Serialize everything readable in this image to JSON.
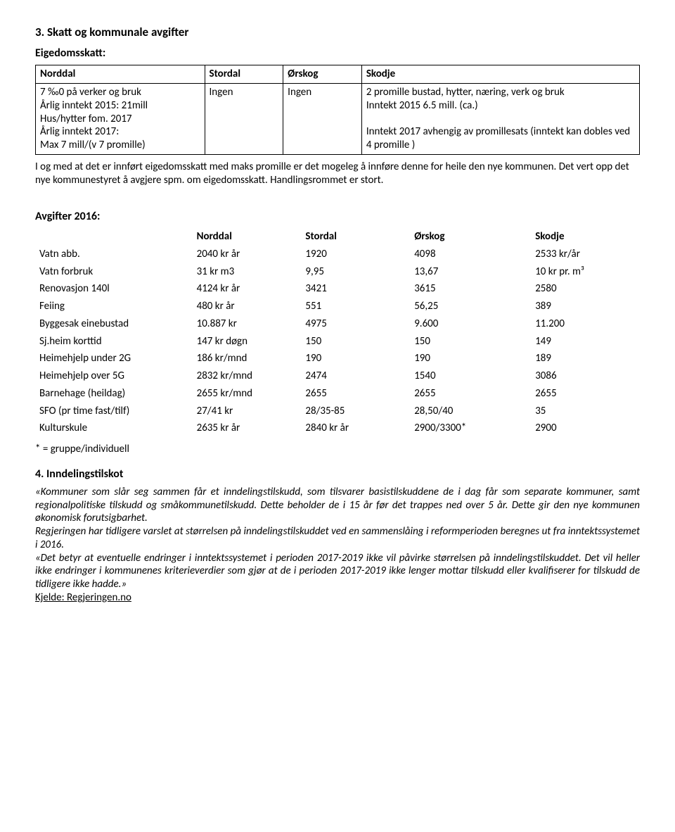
{
  "doc": {
    "heading1": "3. Skatt og kommunale avgifter",
    "eigedomsskatt_label": "Eigedomsskatt:",
    "table1": {
      "columns": [
        "Norddal",
        "Stordal",
        "Ørskog",
        "Skodje"
      ],
      "row1_norddal": "7 ‰0 på verker og bruk\nÅrlig inntekt 2015: 21mill\nHus/hytter fom. 2017\nÅrlig inntekt 2017:\nMax 7 mill/(v 7 promille)",
      "row1_stordal": "Ingen",
      "row1_orskog": "Ingen",
      "row1_skodje": "2 promille bustad, hytter, næring, verk og bruk\nInntekt  2015 6.5 mill. (ca.)\n\nInntekt  2017 avhengig av promillesats (inntekt kan dobles ved 4  promille )"
    },
    "para1": "I og med at det er innført eigedomsskatt med maks promille er det mogeleg å innføre denne for heile den nye kommunen. Det vert opp det nye kommunestyret å avgjere spm. om eigedomsskatt. Handlingsrommet er stort.",
    "avgifter_label": "Avgifter 2016:",
    "table2": {
      "widths": [
        "26%",
        "18%",
        "18%",
        "20%",
        "18%"
      ],
      "header": [
        "",
        "Norddal",
        "Stordal",
        "Ørskog",
        "Skodje"
      ],
      "rows": [
        [
          "Vatn abb.",
          "2040 kr år",
          "1920",
          "4098",
          "2533 kr/år"
        ],
        [
          "Vatn forbruk",
          "31 kr m3",
          "9,95",
          "13,67",
          "10 kr pr. m³"
        ],
        [
          "Renovasjon 140l",
          "4124 kr år",
          "3421",
          "3615",
          "2580"
        ],
        [
          "Feiing",
          "480 kr år",
          "551",
          "56,25",
          "389"
        ],
        [
          "Byggesak einebustad",
          "10.887 kr",
          "4975",
          "9.600",
          "11.200"
        ],
        [
          "Sj.heim korttid",
          "147 kr døgn",
          "150",
          "150",
          "149"
        ],
        [
          "Heimehjelp under 2G",
          "186 kr/mnd",
          "190",
          "190",
          "189"
        ],
        [
          "Heimehjelp over 5G",
          "2832 kr/mnd",
          "2474",
          "1540",
          "3086"
        ],
        [
          "Barnehage (heildag)",
          "2655 kr/mnd",
          "2655",
          "2655",
          "2655"
        ],
        [
          "SFO (pr time fast/tilf)",
          "27/41 kr",
          "28/35-85",
          "28,50/40",
          "35"
        ],
        [
          "Kulturskule",
          "2635 kr år",
          "2840 kr år",
          "2900/3300*",
          "2900"
        ]
      ],
      "footnote": "* = gruppe/individuell"
    },
    "heading4": "4. Inndelingstilskot",
    "para2_it1": "«Kommuner som slår seg sammen får et inndelingstilskudd, som tilsvarer basistilskuddene de i dag får som separate kommuner, samt regionalpolitiske tilskudd og småkommunetilskudd. Dette beholder de i 15 år før det trappes ned over 5 år. Dette gir den nye kommunen økonomisk forutsigbarhet.",
    "para2_it2": "Regjeringen har tidligere varslet at størrelsen på inndelingstilskuddet ved en sammenslåing i reformperioden beregnes ut fra inntektssystemet i 2016.",
    "para2_it3": "«Det betyr at eventuelle endringer i inntektssystemet i perioden 2017-2019 ikke vil påvirke størrelsen på inndelingstilskuddet. Det vil heller ikke endringer i kommunenes kriterieverdier som gjør at de i perioden 2017-2019 ikke lenger mottar tilskudd eller kvalifiserer for tilskudd de tidligere ikke hadde.»",
    "source_label": "Kjelde: Regjeringen.no"
  }
}
